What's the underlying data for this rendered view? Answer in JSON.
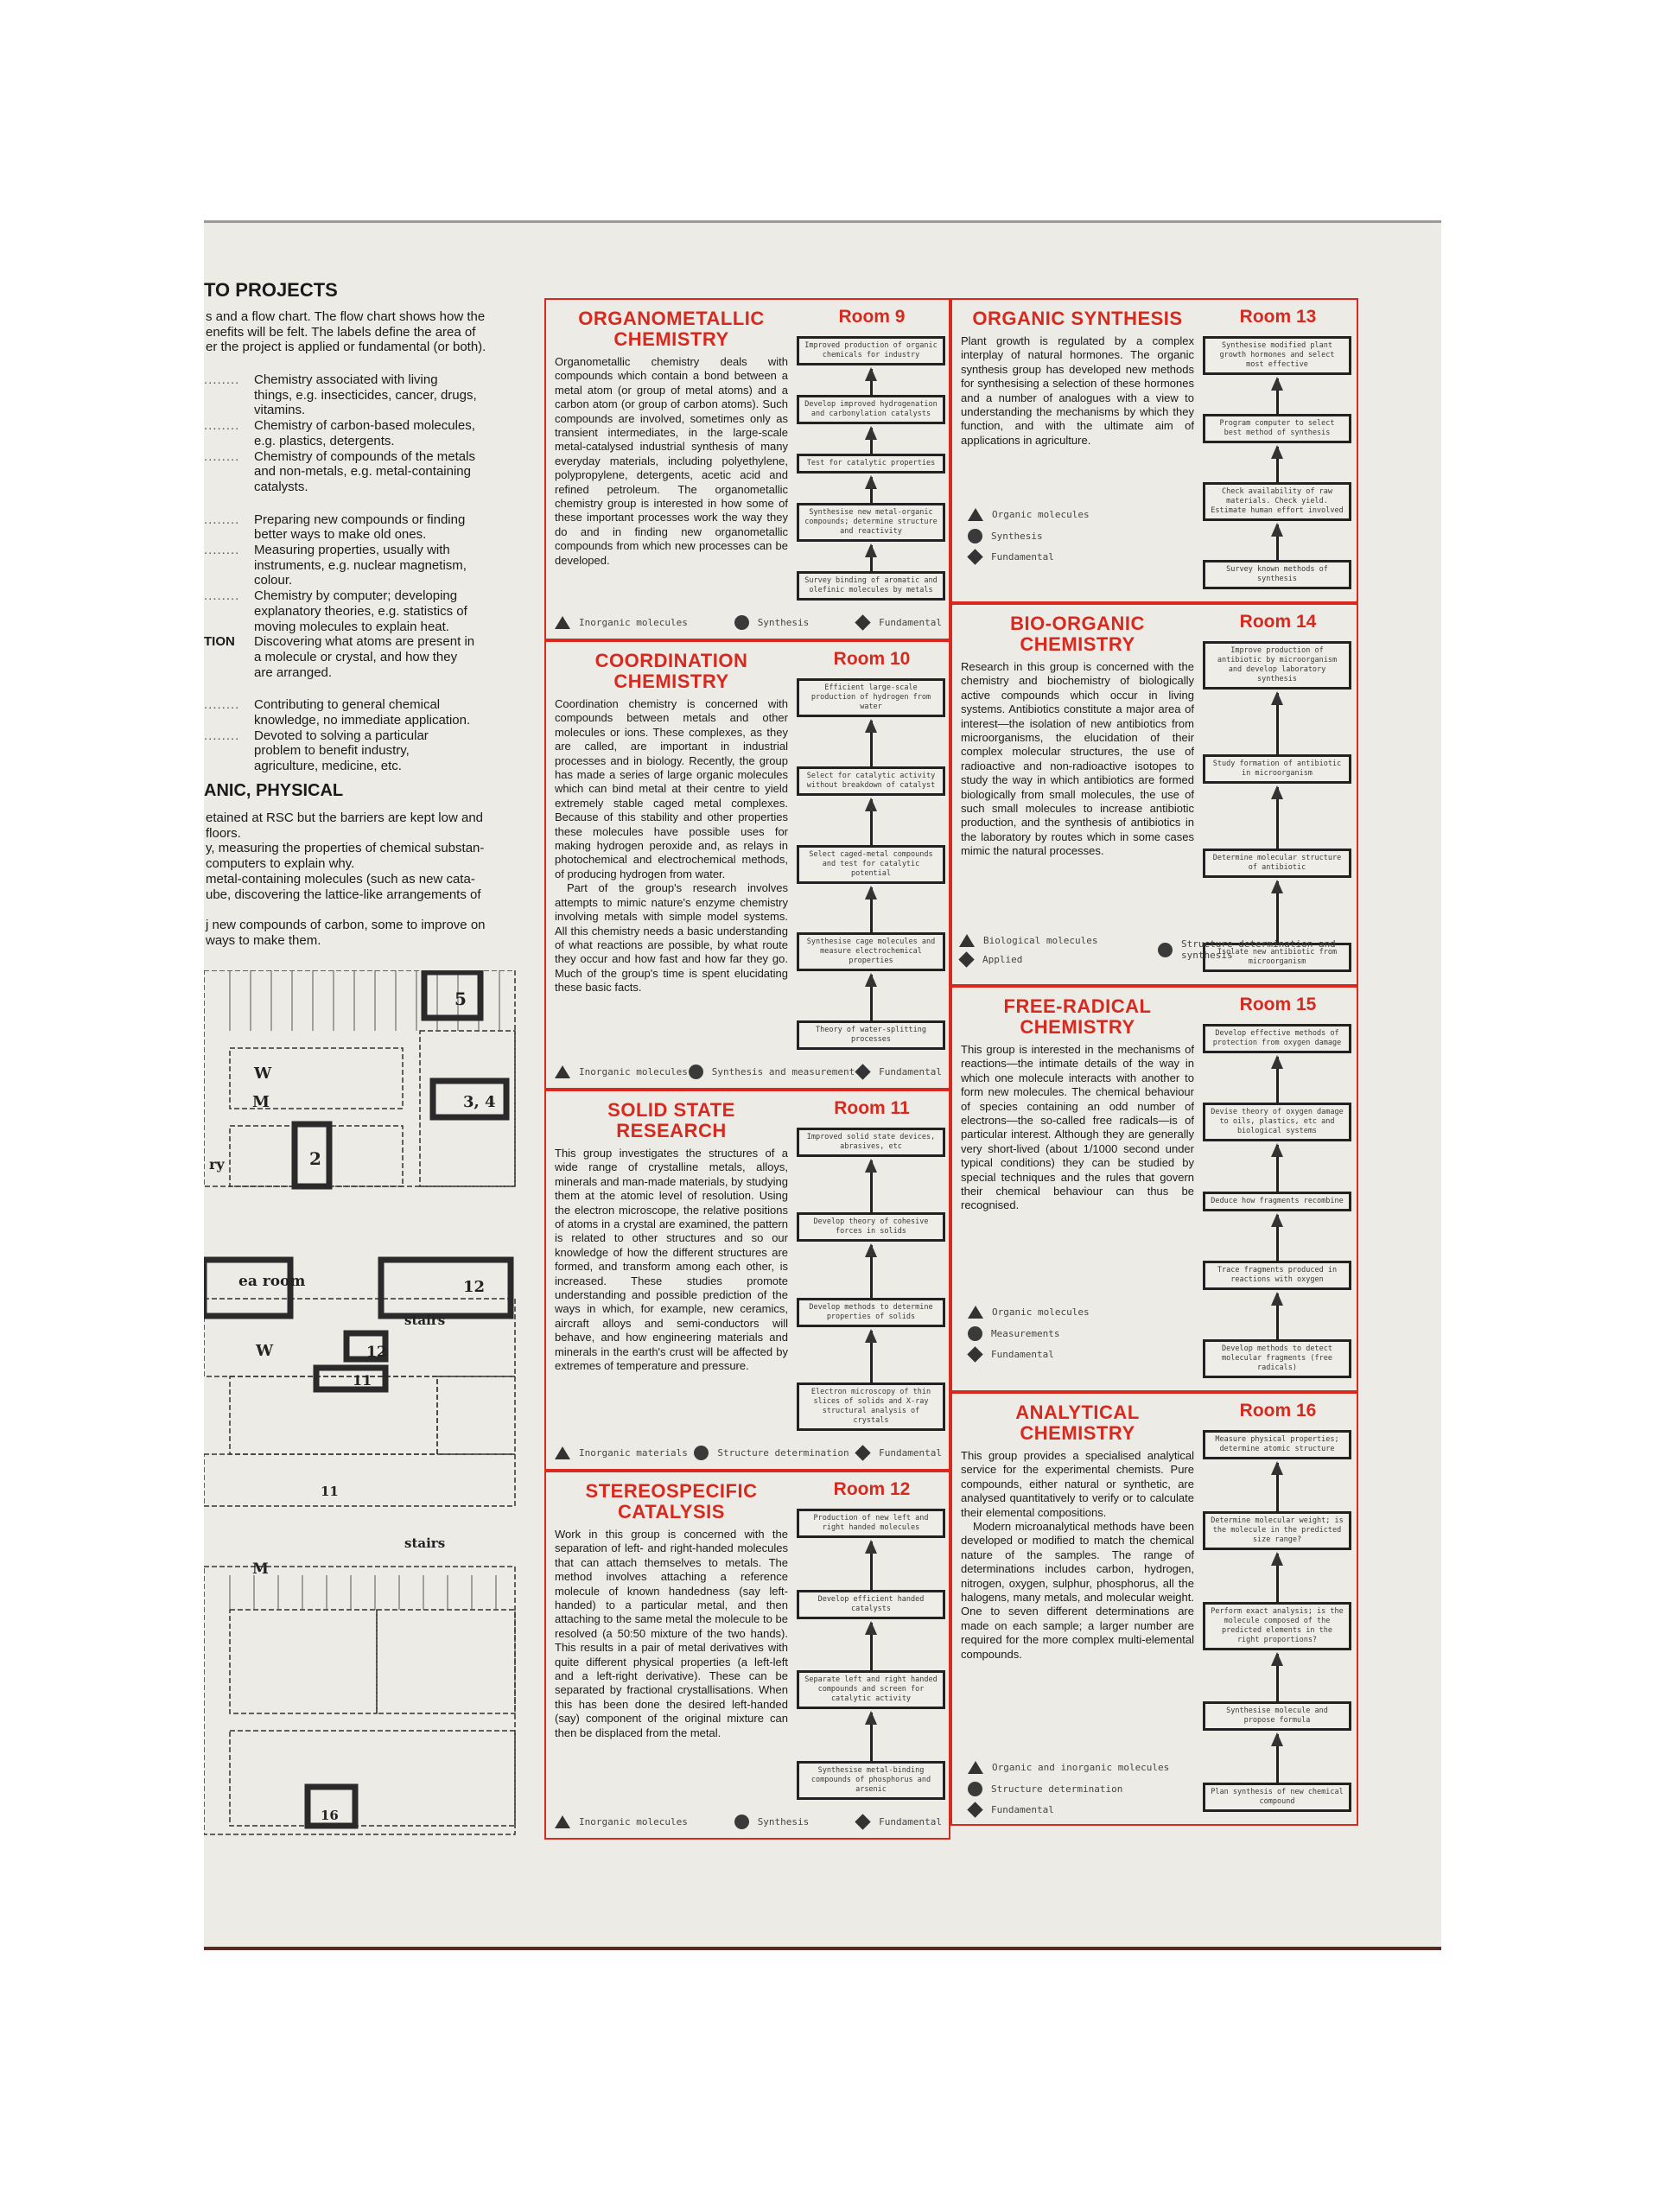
{
  "left_strip": {
    "heading": "TO PROJECTS",
    "intro": [
      "s and a flow chart. The flow chart shows how the",
      "enefits will be felt. The labels define the area of",
      "er the project is applied or fundamental (or both)."
    ],
    "definition_groups": [
      [
        {
          "term": "",
          "leader": "........",
          "lines": [
            "Chemistry associated with living",
            "things, e.g. insecticides, cancer, drugs,",
            "vitamins."
          ]
        },
        {
          "term": "",
          "leader": "........",
          "lines": [
            "Chemistry of carbon-based molecules,",
            "e.g. plastics, detergents."
          ]
        },
        {
          "term": "",
          "leader": "........",
          "lines": [
            "Chemistry of compounds of the metals",
            "and non-metals, e.g. metal-containing",
            "catalysts."
          ]
        }
      ],
      [
        {
          "term": "",
          "leader": "........",
          "lines": [
            "Preparing new compounds or finding",
            "better ways to make old ones."
          ]
        },
        {
          "term": "",
          "leader": "........",
          "lines": [
            "Measuring properties, usually with",
            "instruments, e.g. nuclear magnetism,",
            "colour."
          ]
        },
        {
          "term": "",
          "leader": "........",
          "lines": [
            "Chemistry by computer; developing",
            "explanatory theories, e.g. statistics of",
            "moving molecules to explain heat."
          ]
        },
        {
          "term": "TION",
          "leader": "",
          "lines": [
            "Discovering what atoms are present in",
            "a molecule or crystal, and how they",
            "are arranged."
          ]
        }
      ],
      [
        {
          "term": "",
          "leader": "........",
          "lines": [
            "Contributing to general chemical",
            "knowledge, no immediate application."
          ]
        },
        {
          "term": "",
          "leader": "........",
          "lines": [
            "Devoted to solving a particular",
            "problem to benefit industry,",
            "agriculture, medicine, etc."
          ]
        }
      ]
    ],
    "section_heading": "ANIC, PHYSICAL",
    "paragraph_lines": [
      "etained at RSC but the barriers are kept low and",
      " floors.",
      "y, measuring the properties of chemical substan-",
      "computers to explain why.",
      " metal-containing molecules (such as new cata-",
      "ube, discovering the lattice-like arrangements of",
      "",
      "j new compounds of carbon, some to improve on",
      " ways to make them."
    ]
  },
  "floor_plan": {
    "labels": [
      "5",
      "3, 4",
      "2",
      "W",
      "M",
      "ry",
      "ea room",
      "12",
      "stairs",
      "12",
      "W",
      "11",
      "11",
      "stairs",
      "M",
      "16"
    ]
  },
  "colors": {
    "accent_red": "#d8291f",
    "paper": "#ecebe6",
    "ink": "#1a1a1a"
  },
  "panels": [
    {
      "title_lines": [
        "ORGANOMETALLIC",
        "CHEMISTRY"
      ],
      "room": "Room 9",
      "body": [
        "Organometallic chemistry deals with compounds which contain a bond between a metal atom (or group of metal atoms) and a carbon atom (or group of carbon atoms). Such compounds are involved, sometimes only as transient intermediates, in the large-scale metal-catalysed industrial synthesis of many everyday materials, including polyethylene, polypropylene, detergents, acetic acid and refined petroleum. The organometallic chemistry group is interested in how some of these important processes work the way they do and in finding new organometallic compounds from which new processes can be developed."
      ],
      "flow": [
        "Improved production of organic chemicals for industry",
        "Develop improved hydrogenation and carbonylation catalysts",
        "Test for catalytic properties",
        "Synthesise new metal-organic compounds; determine structure and reactivity",
        "Survey binding of aromatic and olefinic molecules by metals"
      ],
      "legend": [
        {
          "icon": "triangle",
          "label": "Inorganic molecules"
        },
        {
          "icon": "circle",
          "label": "Synthesis"
        },
        {
          "icon": "diamond",
          "label": "Fundamental"
        }
      ]
    },
    {
      "title_lines": [
        "COORDINATION",
        "CHEMISTRY"
      ],
      "room": "Room 10",
      "body": [
        "Coordination chemistry is concerned with compounds between metals and other molecules or ions. These complexes, as they are called, are important in industrial processes and in biology. Recently, the group has made a series of large organic molecules which can bind metal at their centre to yield extremely stable caged metal complexes. Because of this stability and other properties these molecules have possible uses for making hydrogen peroxide and, as relays in photochemical and electrochemical methods, of producing hydrogen from water.",
        "Part of the group's research involves attempts to mimic nature's enzyme chemistry involving metals with simple model systems. All this chemistry needs a basic understanding of what reactions are possible, by what route they occur and how fast and how far they go. Much of the group's time is spent elucidating these basic facts."
      ],
      "flow": [
        "Efficient large-scale production of hydrogen from water",
        "Select for catalytic activity without breakdown of catalyst",
        "Select caged-metal compounds and test for catalytic potential",
        "Synthesise cage molecules and measure electrochemical properties",
        "Theory of water-splitting processes"
      ],
      "legend": [
        {
          "icon": "triangle",
          "label": "Inorganic molecules"
        },
        {
          "icon": "circle",
          "label": "Synthesis and measurement"
        },
        {
          "icon": "diamond",
          "label": "Fundamental"
        }
      ]
    },
    {
      "title_lines": [
        "SOLID STATE",
        "RESEARCH"
      ],
      "room": "Room 11",
      "body": [
        "This group investigates the structures of a wide range of crystalline metals, alloys, minerals and man-made materials, by studying them at the atomic level of resolution. Using the electron microscope, the relative positions of atoms in a crystal are examined, the pattern is related to other structures and so our knowledge of how the different structures are formed, and transform among each other, is increased. These studies promote understanding and possible prediction of the ways in which, for example, new ceramics, aircraft alloys and semi-conductors will behave, and how engineering materials and minerals in the earth's crust will be affected by extremes of temperature and pressure."
      ],
      "flow": [
        "Improved solid state devices, abrasives, etc",
        "Develop theory of cohesive forces in solids",
        "Develop methods to determine properties of solids",
        "Electron microscopy of thin slices of solids and X-ray structural analysis of crystals"
      ],
      "legend": [
        {
          "icon": "triangle",
          "label": "Inorganic materials"
        },
        {
          "icon": "circle",
          "label": "Structure determination"
        },
        {
          "icon": "diamond",
          "label": "Fundamental"
        }
      ]
    },
    {
      "title_lines": [
        "STEREOSPECIFIC",
        "CATALYSIS"
      ],
      "room": "Room 12",
      "body": [
        "Work in this group is concerned with the separation of left- and right-handed molecules that can attach themselves to metals. The method involves attaching a reference molecule of known handedness (say left-handed) to a particular metal, and then attaching to the same metal the molecule to be resolved (a 50:50 mixture of the two hands). This results in a pair of metal derivatives with quite different physical properties (a left-left and a left-right derivative). These can be separated by fractional crystallisations. When this has been done the desired left-handed (say) component of the original mixture can then be displaced from the metal."
      ],
      "flow": [
        "Production of new left and right handed molecules",
        "Develop efficient handed catalysts",
        "Separate left and right handed compounds and screen for catalytic activity",
        "Synthesise metal-binding compounds of phosphorus and arsenic"
      ],
      "legend": [
        {
          "icon": "triangle",
          "label": "Inorganic molecules"
        },
        {
          "icon": "circle",
          "label": "Synthesis"
        },
        {
          "icon": "diamond",
          "label": "Fundamental"
        }
      ]
    },
    {
      "title_lines": [
        "ORGANIC SYNTHESIS"
      ],
      "room": "Room 13",
      "body": [
        "Plant growth is regulated by a complex interplay of natural hormones. The organic synthesis group has developed new methods for synthesising a selection of these hormones and a number of analogues with a view to understanding the mechanisms by which they function, and with the ultimate aim of applications in agriculture."
      ],
      "flow": [
        "Synthesise modified plant growth hormones and select most effective",
        "Program computer to select best method of synthesis",
        "Check availability of raw materials. Check yield. Estimate human effort involved",
        "Survey known methods of synthesis"
      ],
      "legend": [
        {
          "icon": "triangle",
          "label": "Organic molecules"
        },
        {
          "icon": "circle",
          "label": "Synthesis"
        },
        {
          "icon": "diamond",
          "label": "Fundamental"
        }
      ]
    },
    {
      "title_lines": [
        "BIO-ORGANIC",
        "CHEMISTRY"
      ],
      "room": "Room 14",
      "body": [
        "Research in this group is concerned with the chemistry and biochemistry of biologically active compounds which occur in living systems. Antibiotics constitute a major area of interest—the isolation of new antibiotics from microorganisms, the elucidation of their complex molecular structures, the use of radioactive and non-radioactive isotopes to study the way in which antibiotics are formed biologically from small molecules, the use of such small molecules to increase antibiotic production, and the synthesis of antibiotics in the laboratory by routes which in some cases mimic the natural processes."
      ],
      "flow": [
        "Improve production of antibiotic by microorganism and develop laboratory synthesis",
        "Study formation of antibiotic in microorganism",
        "Determine molecular structure of antibiotic",
        "Isolate new antibiotic from microorganism"
      ],
      "legend": [
        {
          "icon": "triangle",
          "label": "Biological molecules"
        },
        {
          "icon": "circle",
          "label": "Structure determination and synthesis"
        },
        {
          "icon": "diamond",
          "label": "Applied"
        }
      ]
    },
    {
      "title_lines": [
        "FREE-RADICAL",
        "CHEMISTRY"
      ],
      "room": "Room 15",
      "body": [
        "This group is interested in the mechanisms of reactions—the intimate details of the way in which one molecule interacts with another to form new molecules. The chemical behaviour of species containing an odd number of electrons—the so-called free radicals—is of particular interest. Although they are generally very short-lived (about 1/1000 second under typical conditions) they can be studied by special techniques and the rules that govern their chemical behaviour can thus be recognised."
      ],
      "flow": [
        "Develop effective methods of protection from oxygen damage",
        "Devise theory of oxygen damage to oils, plastics, etc and biological systems",
        "Deduce how fragments recombine",
        "Trace fragments produced in reactions with oxygen",
        "Develop methods to detect molecular fragments (free radicals)"
      ],
      "legend": [
        {
          "icon": "triangle",
          "label": "Organic molecules"
        },
        {
          "icon": "circle",
          "label": "Measurements"
        },
        {
          "icon": "diamond",
          "label": "Fundamental"
        }
      ]
    },
    {
      "title_lines": [
        "ANALYTICAL",
        "CHEMISTRY"
      ],
      "room": "Room 16",
      "body": [
        "This group provides a specialised analytical service for the experimental chemists. Pure compounds, either natural or synthetic, are analysed quantitatively to verify or to calculate their elemental compositions.",
        "Modern microanalytical methods have been developed or modified to match the chemical nature of the samples. The range of determinations includes carbon, hydrogen, nitrogen, oxygen, sulphur, phosphorus, all the halogens, many metals, and molecular weight. One to seven different determinations are made on each sample; a larger number are required for the more complex multi-elemental compounds."
      ],
      "flow": [
        "Measure physical properties; determine atomic structure",
        "Determine molecular weight; is the molecule in the predicted size range?",
        "Perform exact analysis; is the molecule composed of the predicted elements in the right proportions?",
        "Synthesise molecule and propose formula",
        "Plan synthesis of new chemical compound"
      ],
      "legend": [
        {
          "icon": "triangle",
          "label": "Organic and inorganic molecules"
        },
        {
          "icon": "circle",
          "label": "Structure determination"
        },
        {
          "icon": "diamond",
          "label": "Fundamental"
        }
      ]
    }
  ]
}
